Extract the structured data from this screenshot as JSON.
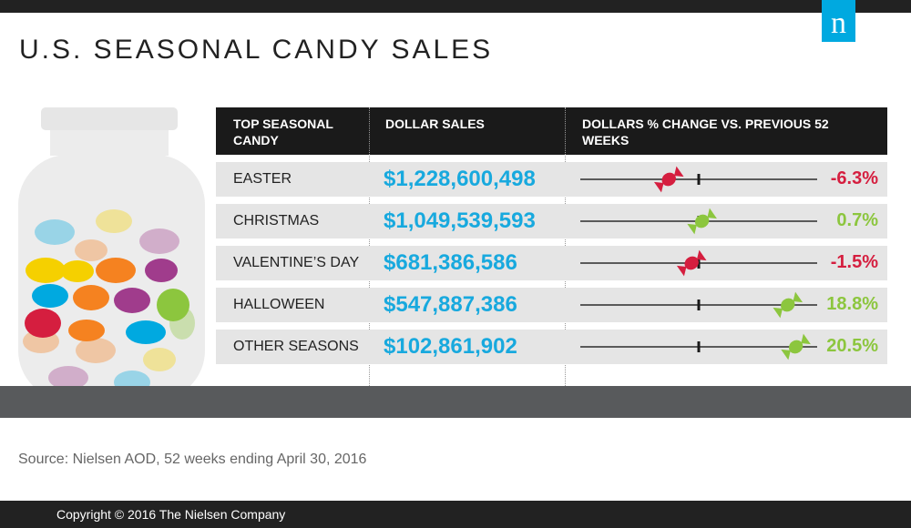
{
  "title": "U.S. SEASONAL CANDY SALES",
  "logo_letter": "n",
  "source": "Source: Nielsen AOD, 52 weeks ending April 30, 2016",
  "copyright": "Copyright © 2016 The Nielsen Company",
  "colors": {
    "accent_blue": "#18a9de",
    "negative_red": "#d51e3f",
    "positive_green": "#8cc63e",
    "header_bg": "#1a1a1a",
    "row_bg": "#e5e5e5"
  },
  "chart_data": {
    "type": "table",
    "columns": [
      "TOP SEASONAL CANDY",
      "DOLLAR SALES",
      "DOLLARS % CHANGE VS. PREVIOUS 52 WEEKS"
    ],
    "change_axis_range": [
      -25,
      25
    ],
    "rows": [
      {
        "season": "EASTER",
        "sales": "$1,228,600,498",
        "change_value": -6.3,
        "change_label": "-6.3%"
      },
      {
        "season": "CHRISTMAS",
        "sales": "$1,049,539,593",
        "change_value": 0.7,
        "change_label": "0.7%"
      },
      {
        "season": "VALENTINE’S DAY",
        "sales": "$681,386,586",
        "change_value": -1.5,
        "change_label": "-1.5%"
      },
      {
        "season": "HALLOWEEN",
        "sales": "$547,887,386",
        "change_value": 18.8,
        "change_label": "18.8%"
      },
      {
        "season": "OTHER SEASONS",
        "sales": "$102,861,902",
        "change_value": 20.5,
        "change_label": "20.5%"
      }
    ]
  }
}
